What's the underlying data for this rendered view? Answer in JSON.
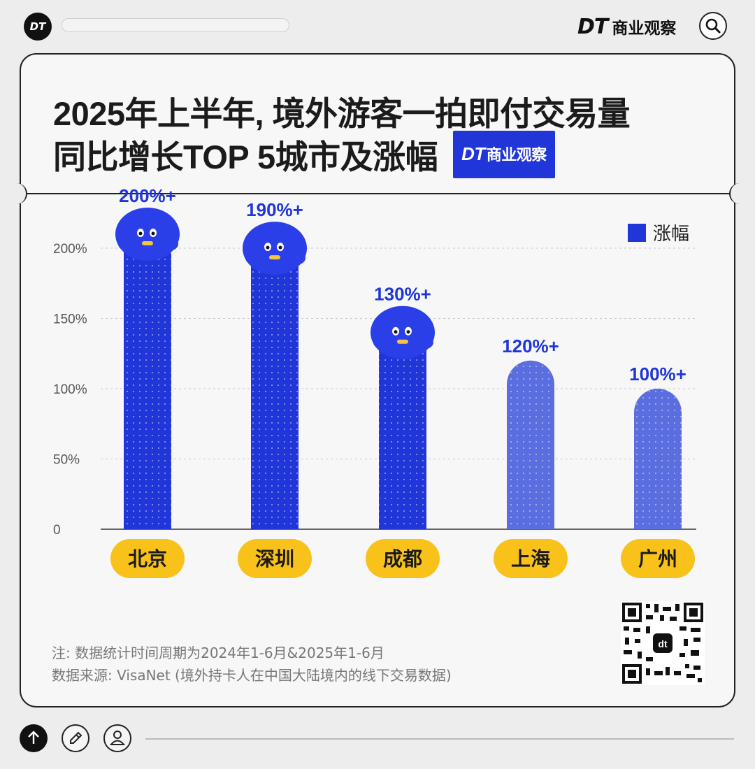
{
  "header": {
    "logo_text": "DT",
    "brand_dt": "DT",
    "brand_name": "商业观察",
    "search_icon": "search-icon"
  },
  "title": {
    "line1": "2025年上半年, 境外游客一拍即付交易量",
    "line2": "同比增长TOP 5城市及涨幅",
    "badge_dt": "DT",
    "badge_text": "商业观察"
  },
  "colors": {
    "bar_primary": "#2036d9",
    "bar_secondary": "#5a6ee0",
    "label_pill": "#f8c21a",
    "value_label": "#2036d9"
  },
  "chart_data": {
    "type": "bar",
    "categories": [
      "北京",
      "深圳",
      "成都",
      "上海",
      "广州"
    ],
    "series": [
      {
        "name": "涨幅",
        "values": [
          200,
          190,
          130,
          120,
          100
        ]
      }
    ],
    "data_labels": [
      "200%+",
      "190%+",
      "130%+",
      "120%+",
      "100%+"
    ],
    "y_ticks": [
      "0",
      "50%",
      "100%",
      "150%",
      "200%"
    ],
    "y_tick_values": [
      0,
      50,
      100,
      150,
      200
    ],
    "ylim": [
      0,
      200
    ],
    "grid": true,
    "legend": "top-right",
    "legend_label": "涨幅"
  },
  "notes": {
    "line1": "注: 数据统计时间周期为2024年1-6月&2025年1-6月",
    "line2": "数据来源: VisaNet (境外持卡人在中国大陆境内的线下交易数据)"
  },
  "footer": {
    "buttons": [
      "arrow-up-icon",
      "pencil-icon",
      "user-icon"
    ]
  }
}
